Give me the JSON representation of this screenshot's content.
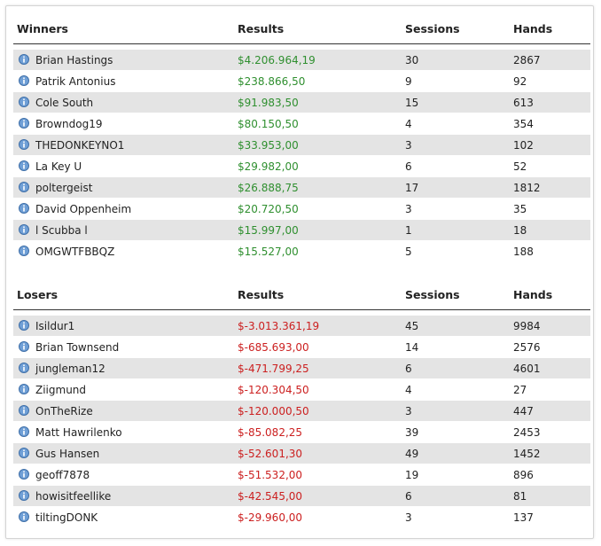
{
  "colors": {
    "positive": "#2f8f2f",
    "negative": "#cc2020",
    "stripe": "#e4e4e4"
  },
  "icon": "info-icon",
  "winners": {
    "headers": {
      "name": "Winners",
      "results": "Results",
      "sessions": "Sessions",
      "hands": "Hands"
    },
    "rows": [
      {
        "name": "Brian Hastings",
        "results": "$4.206.964,19",
        "sessions": "30",
        "hands": "2867"
      },
      {
        "name": "Patrik Antonius",
        "results": "$238.866,50",
        "sessions": "9",
        "hands": "92"
      },
      {
        "name": "Cole South",
        "results": "$91.983,50",
        "sessions": "15",
        "hands": "613"
      },
      {
        "name": "Browndog19",
        "results": "$80.150,50",
        "sessions": "4",
        "hands": "354"
      },
      {
        "name": "THEDONKEYNO1",
        "results": "$33.953,00",
        "sessions": "3",
        "hands": "102"
      },
      {
        "name": "La Key U",
        "results": "$29.982,00",
        "sessions": "6",
        "hands": "52"
      },
      {
        "name": "poltergeist",
        "results": "$26.888,75",
        "sessions": "17",
        "hands": "1812"
      },
      {
        "name": "David Oppenheim",
        "results": "$20.720,50",
        "sessions": "3",
        "hands": "35"
      },
      {
        "name": "l Scubba l",
        "results": "$15.997,00",
        "sessions": "1",
        "hands": "18"
      },
      {
        "name": "OMGWTFBBQZ",
        "results": "$15.527,00",
        "sessions": "5",
        "hands": "188"
      }
    ]
  },
  "losers": {
    "headers": {
      "name": "Losers",
      "results": "Results",
      "sessions": "Sessions",
      "hands": "Hands"
    },
    "rows": [
      {
        "name": "Isildur1",
        "results": "$-3.013.361,19",
        "sessions": "45",
        "hands": "9984"
      },
      {
        "name": "Brian Townsend",
        "results": "$-685.693,00",
        "sessions": "14",
        "hands": "2576"
      },
      {
        "name": "jungleman12",
        "results": "$-471.799,25",
        "sessions": "6",
        "hands": "4601"
      },
      {
        "name": "Ziigmund",
        "results": "$-120.304,50",
        "sessions": "4",
        "hands": "27"
      },
      {
        "name": "OnTheRize",
        "results": "$-120.000,50",
        "sessions": "3",
        "hands": "447"
      },
      {
        "name": "Matt Hawrilenko",
        "results": "$-85.082,25",
        "sessions": "39",
        "hands": "2453"
      },
      {
        "name": "Gus Hansen",
        "results": "$-52.601,30",
        "sessions": "49",
        "hands": "1452"
      },
      {
        "name": "geoff7878",
        "results": "$-51.532,00",
        "sessions": "19",
        "hands": "896"
      },
      {
        "name": "howisitfeellike",
        "results": "$-42.545,00",
        "sessions": "6",
        "hands": "81"
      },
      {
        "name": "tiltingDONK",
        "results": "$-29.960,00",
        "sessions": "3",
        "hands": "137"
      }
    ]
  }
}
